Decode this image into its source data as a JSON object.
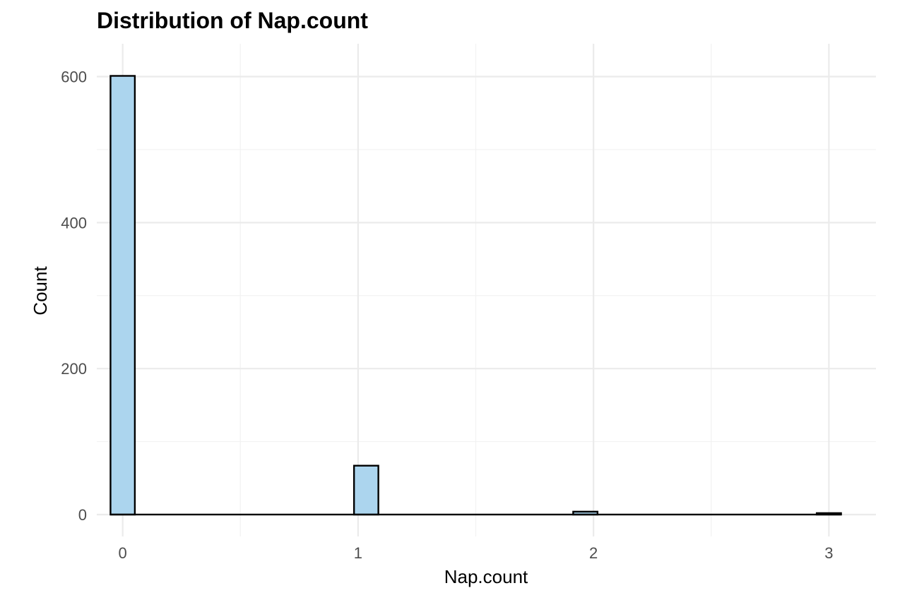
{
  "chart_data": {
    "type": "bar",
    "title": "Distribution of Nap.count",
    "xlabel": "Nap.count",
    "ylabel": "Count",
    "xlim": [
      -0.11,
      3.2
    ],
    "ylim": [
      -30,
      645
    ],
    "xticks": [
      0,
      1,
      2,
      3
    ],
    "yticks": [
      0,
      200,
      400,
      600
    ],
    "grid": true,
    "bin_width": 0.1034,
    "bins": [
      {
        "x": 0.0,
        "value": 601
      },
      {
        "x": 1.0345,
        "value": 67
      },
      {
        "x": 1.9655,
        "value": 4
      },
      {
        "x": 3.0,
        "value": 2
      }
    ],
    "baseline_range": [
      -0.0517,
      3.0517
    ],
    "fill_color": "#acd5ee",
    "edge_color": "#000000"
  }
}
